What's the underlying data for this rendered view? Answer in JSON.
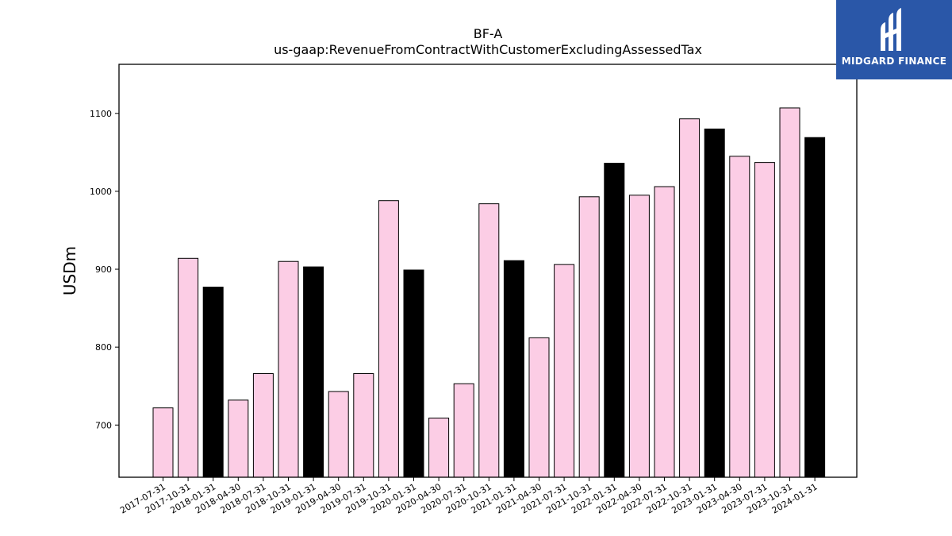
{
  "logo": {
    "text": "MIDGARD FINANCE",
    "bg_color": "#2a57a8",
    "icon": "midgard-logo-icon"
  },
  "chart_data": {
    "type": "bar",
    "title": "BF-A",
    "subtitle": "us-gaap:RevenueFromContractWithCustomerExcludingAssessedTax",
    "xlabel": "",
    "ylabel": "USDm",
    "ylim": [
      633,
      1163
    ],
    "yticks": [
      700,
      800,
      900,
      1000,
      1100
    ],
    "grid": false,
    "colors": {
      "quarter": "#fccde5",
      "fiscal_year_end": "#000000",
      "edge": "#000000"
    },
    "categories": [
      "2017-07-31",
      "2017-10-31",
      "2018-01-31",
      "2018-04-30",
      "2018-07-31",
      "2018-10-31",
      "2019-01-31",
      "2019-04-30",
      "2019-07-31",
      "2019-10-31",
      "2020-01-31",
      "2020-04-30",
      "2020-07-31",
      "2020-10-31",
      "2021-01-31",
      "2021-04-30",
      "2021-07-31",
      "2021-10-31",
      "2022-01-31",
      "2022-04-30",
      "2022-07-31",
      "2022-10-31",
      "2023-01-31",
      "2023-04-30",
      "2023-07-31",
      "2023-10-31",
      "2024-01-31"
    ],
    "values": [
      722,
      914,
      877,
      732,
      766,
      910,
      903,
      743,
      766,
      988,
      899,
      709,
      753,
      984,
      911,
      812,
      906,
      993,
      1036,
      995,
      1006,
      1093,
      1080,
      1045,
      1037,
      1107,
      1069
    ],
    "highlight": [
      false,
      false,
      true,
      false,
      false,
      false,
      true,
      false,
      false,
      false,
      true,
      false,
      false,
      false,
      true,
      false,
      false,
      false,
      true,
      false,
      false,
      false,
      true,
      false,
      false,
      false,
      true
    ]
  }
}
